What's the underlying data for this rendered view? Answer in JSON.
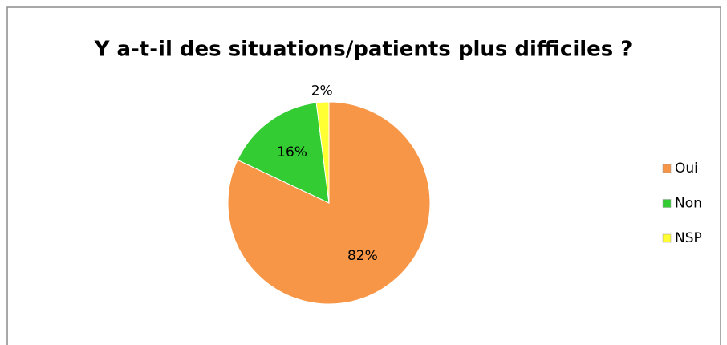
{
  "chart_data": {
    "type": "pie",
    "title": "Y a-t-il des situations/patients plus difficiles ?",
    "categories": [
      "Oui",
      "Non",
      "NSP"
    ],
    "values": [
      82,
      16,
      2
    ],
    "value_labels": [
      "82%",
      "16%",
      "2%"
    ],
    "colors": [
      "#f79646",
      "#33cc33",
      "#ffff33"
    ],
    "legend": "right"
  }
}
